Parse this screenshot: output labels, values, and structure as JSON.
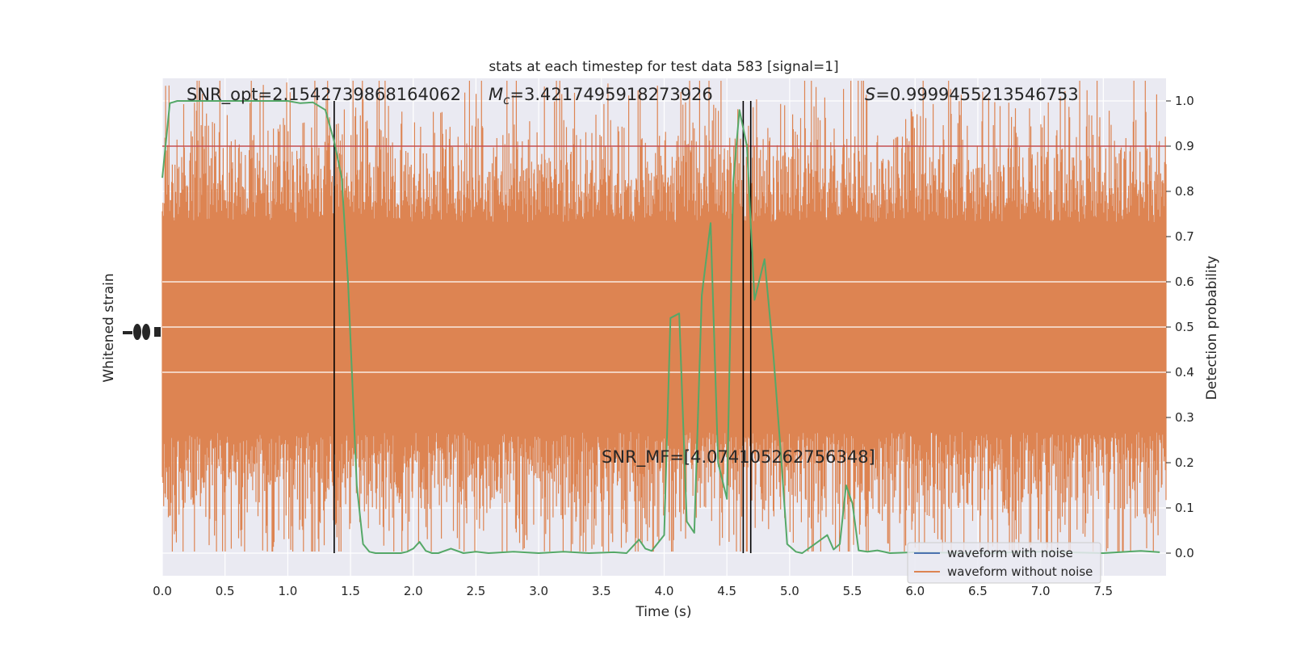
{
  "chart_data": {
    "type": "line",
    "title": "stats at each timestep for test data 583 [signal=1]",
    "xlabel": "Time (s)",
    "ylabel_left": "Whitened strain",
    "ylabel_right": "Detection probability",
    "xlim": [
      0.0,
      8.0
    ],
    "ylim_right": [
      -0.05,
      1.05
    ],
    "x_ticks": [
      "0.0",
      "0.5",
      "1.0",
      "1.5",
      "2.0",
      "2.5",
      "3.0",
      "3.5",
      "4.0",
      "4.5",
      "5.0",
      "5.5",
      "6.0",
      "6.5",
      "7.0",
      "7.5"
    ],
    "y_ticks_right": [
      "0.0",
      "0.1",
      "0.2",
      "0.3",
      "0.4",
      "0.5",
      "0.6",
      "0.7",
      "0.8",
      "0.9",
      "1.0"
    ],
    "grid": true,
    "legend_position": "lower-right",
    "threshold": 0.9,
    "vertical_lines": [
      1.37,
      4.63,
      4.69
    ],
    "annotations": {
      "snr_opt": "SNR_opt=2.1542739868164062",
      "mc_symbol": "M",
      "mc_subscript": "c",
      "mc_value": "=3.4217495918273926",
      "s_symbol": "S",
      "s_value": "=0.9999455213546753",
      "snr_mf": "SNR_MF=[4.074105262756348]"
    },
    "series": [
      {
        "name": "waveform with noise",
        "color": "#4c72b0"
      },
      {
        "name": "waveform without noise",
        "color": "#dd8452"
      }
    ],
    "detection_probability": {
      "color": "#55a868",
      "x": [
        0.0,
        0.06,
        0.12,
        0.2,
        0.3,
        0.4,
        0.5,
        0.6,
        0.7,
        0.8,
        0.9,
        1.0,
        1.1,
        1.2,
        1.3,
        1.37,
        1.43,
        1.48,
        1.55,
        1.6,
        1.65,
        1.7,
        1.8,
        1.9,
        1.95,
        2.0,
        2.05,
        2.1,
        2.15,
        2.2,
        2.3,
        2.4,
        2.5,
        2.6,
        2.8,
        3.0,
        3.2,
        3.4,
        3.6,
        3.7,
        3.8,
        3.85,
        3.9,
        4.0,
        4.05,
        4.12,
        4.18,
        4.24,
        4.3,
        4.37,
        4.43,
        4.5,
        4.55,
        4.6,
        4.66,
        4.72,
        4.8,
        4.87,
        4.93,
        4.98,
        5.05,
        5.1,
        5.2,
        5.3,
        5.35,
        5.4,
        5.45,
        5.5,
        5.55,
        5.62,
        5.7,
        5.8,
        6.0,
        6.5,
        7.0,
        7.5,
        7.8,
        7.95
      ],
      "y": [
        0.83,
        0.995,
        1.0,
        1.0,
        1.0,
        1.0,
        1.0,
        1.0,
        1.0,
        1.0,
        1.0,
        1.0,
        0.995,
        0.997,
        0.98,
        0.91,
        0.83,
        0.6,
        0.15,
        0.02,
        0.003,
        0.0,
        0.0,
        0.0,
        0.003,
        0.01,
        0.025,
        0.005,
        0.0,
        0.0,
        0.01,
        0.0,
        0.003,
        0.0,
        0.003,
        0.0,
        0.003,
        0.0,
        0.002,
        0.0,
        0.03,
        0.01,
        0.005,
        0.04,
        0.52,
        0.53,
        0.07,
        0.045,
        0.57,
        0.73,
        0.2,
        0.12,
        0.82,
        0.98,
        0.9,
        0.56,
        0.65,
        0.44,
        0.22,
        0.02,
        0.003,
        0.0,
        0.02,
        0.04,
        0.008,
        0.02,
        0.15,
        0.11,
        0.006,
        0.003,
        0.006,
        0.0,
        0.002,
        0.0,
        0.003,
        0.0,
        0.005,
        0.002
      ]
    }
  }
}
